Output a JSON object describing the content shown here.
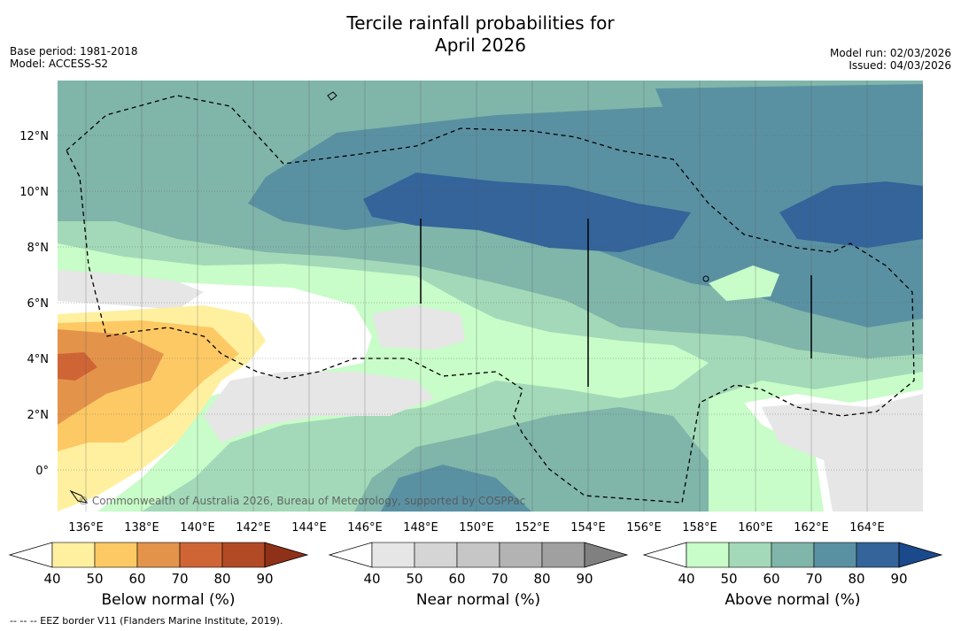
{
  "title": {
    "line1": "Tercile rainfall probabilities for",
    "line2": "April 2026"
  },
  "meta": {
    "base_period": "Base period: 1981-2018",
    "model": "Model: ACCESS-S2",
    "model_run": "Model run: 02/03/2026",
    "issued": "Issued: 04/03/2026"
  },
  "map": {
    "lon_labels": [
      "136°E",
      "138°E",
      "140°E",
      "142°E",
      "144°E",
      "146°E",
      "148°E",
      "150°E",
      "152°E",
      "154°E",
      "156°E",
      "158°E",
      "160°E",
      "162°E",
      "164°E"
    ],
    "lat_labels": [
      "12°N",
      "10°N",
      "8°N",
      "6°N",
      "4°N",
      "2°N",
      "0°"
    ],
    "copyright": "© Commonwealth of Australia 2026, Bureau of Meteorology, supported by COSPPac"
  },
  "colorbars": [
    {
      "label": "Below normal (%)",
      "ticks": [
        "40",
        "50",
        "60",
        "70",
        "80",
        "90"
      ],
      "colors": [
        "#fff0a0",
        "#fdc964",
        "#e3944a",
        "#cf6535",
        "#b24a26",
        "#8f3018"
      ]
    },
    {
      "label": "Near normal (%)",
      "ticks": [
        "40",
        "50",
        "60",
        "70",
        "80",
        "90"
      ],
      "colors": [
        "#e6e6e6",
        "#d5d5d5",
        "#c6c6c6",
        "#b3b3b3",
        "#a0a0a0",
        "#808080"
      ]
    },
    {
      "label": "Above normal (%)",
      "ticks": [
        "40",
        "50",
        "60",
        "70",
        "80",
        "90"
      ],
      "colors": [
        "#c8fcc8",
        "#a3d9b8",
        "#80b5aa",
        "#5a91a2",
        "#34649a",
        "#1a4a8c"
      ]
    }
  ],
  "footnote": "--  --  -- EEZ border V11 (Flanders Marine Institute, 2019)."
}
